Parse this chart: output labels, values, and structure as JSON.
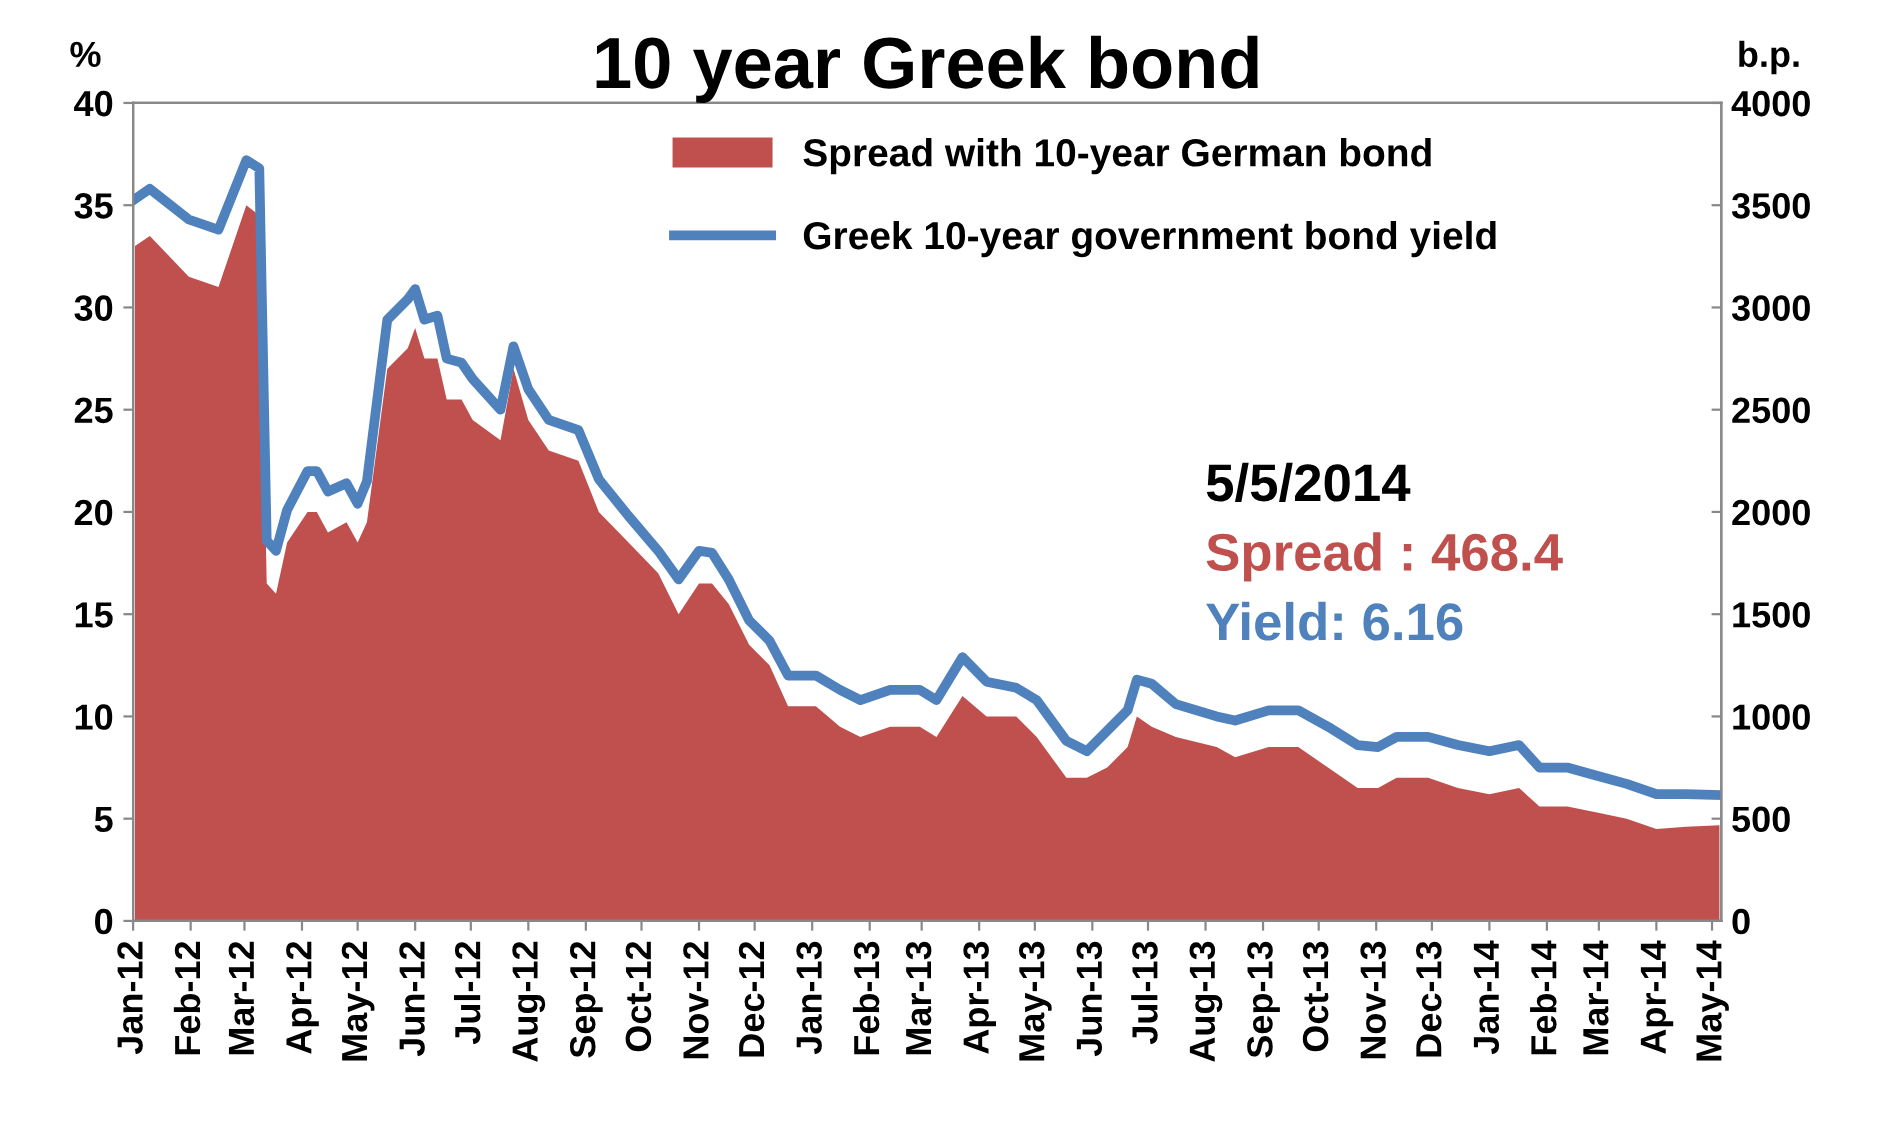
{
  "chart_data": {
    "type": "area",
    "title": "10 year Greek bond",
    "ylabel": "%",
    "y2label": "b.p.",
    "x": [
      "2012-01-02",
      "2012-01-10",
      "2012-01-31",
      "2012-02-16",
      "2012-03-02",
      "2012-03-09",
      "2012-03-13",
      "2012-03-18",
      "2012-03-24",
      "2012-04-04",
      "2012-04-09",
      "2012-04-15",
      "2012-04-25",
      "2012-05-01",
      "2012-05-06",
      "2012-05-17",
      "2012-05-28",
      "2012-06-01",
      "2012-06-06",
      "2012-06-13",
      "2012-06-18",
      "2012-06-26",
      "2012-07-02",
      "2012-07-17",
      "2012-07-24",
      "2012-08-01",
      "2012-08-12",
      "2012-08-28",
      "2012-09-08",
      "2012-09-24",
      "2012-10-10",
      "2012-10-21",
      "2012-11-01",
      "2012-11-08",
      "2012-11-17",
      "2012-11-28",
      "2012-12-09",
      "2012-12-19",
      "2013-01-03",
      "2013-01-16",
      "2013-01-27",
      "2013-02-12",
      "2013-02-28",
      "2013-03-09",
      "2013-03-23",
      "2013-04-05",
      "2013-04-21",
      "2013-05-02",
      "2013-05-18",
      "2013-05-29",
      "2013-06-09",
      "2013-06-20",
      "2013-06-25",
      "2013-07-03",
      "2013-07-16",
      "2013-08-07",
      "2013-08-17",
      "2013-09-04",
      "2013-09-20",
      "2013-10-06",
      "2013-10-22",
      "2013-11-02",
      "2013-11-12",
      "2013-11-29",
      "2013-12-15",
      "2014-01-01",
      "2014-01-17",
      "2014-01-28",
      "2014-02-12",
      "2014-02-28",
      "2014-03-16",
      "2014-04-01",
      "2014-04-17",
      "2014-05-05"
    ],
    "series": [
      {
        "name": "Spread with 10-year German bond",
        "axis": "y2",
        "color": "#c0504d",
        "values": [
          3300,
          3350,
          3150,
          3100,
          3500,
          3450,
          1650,
          1600,
          1850,
          2000,
          2000,
          1900,
          1950,
          1850,
          1950,
          2700,
          2800,
          2900,
          2750,
          2750,
          2550,
          2550,
          2450,
          2350,
          2700,
          2450,
          2300,
          2250,
          2000,
          1850,
          1700,
          1500,
          1650,
          1650,
          1550,
          1350,
          1250,
          1050,
          1050,
          950,
          900,
          950,
          950,
          900,
          1100,
          1000,
          1000,
          900,
          700,
          700,
          750,
          850,
          1000,
          950,
          900,
          850,
          800,
          850,
          850,
          750,
          650,
          650,
          700,
          700,
          650,
          620,
          650,
          560,
          560,
          530,
          500,
          450,
          460,
          468.4
        ]
      },
      {
        "name": "Greek 10-year government bond yield",
        "type": "line",
        "axis": "y",
        "color": "#4f81bd",
        "values": [
          35.3,
          35.8,
          34.3,
          33.8,
          37.2,
          36.8,
          18.6,
          18.1,
          20.1,
          22.0,
          22.0,
          21.0,
          21.4,
          20.4,
          21.5,
          29.4,
          30.4,
          30.9,
          29.4,
          29.6,
          27.5,
          27.3,
          26.5,
          25.0,
          28.1,
          26.0,
          24.5,
          24.0,
          21.6,
          19.8,
          18.1,
          16.7,
          18.1,
          18.0,
          16.7,
          14.7,
          13.7,
          12.0,
          12.0,
          11.3,
          10.8,
          11.3,
          11.3,
          10.8,
          12.9,
          11.7,
          11.4,
          10.8,
          8.8,
          8.3,
          9.3,
          10.3,
          11.8,
          11.6,
          10.6,
          10.0,
          9.8,
          10.3,
          10.3,
          9.5,
          8.6,
          8.5,
          9.0,
          9.0,
          8.6,
          8.3,
          8.6,
          7.5,
          7.5,
          7.1,
          6.7,
          6.2,
          6.2,
          6.16
        ]
      }
    ],
    "xlim": [
      "2012-01-01",
      "2014-05-06"
    ],
    "xticks": [
      {
        "value": "2012-01-01",
        "label": "Jan-12"
      },
      {
        "value": "2012-02-01",
        "label": "Feb-12"
      },
      {
        "value": "2012-03-01",
        "label": "Mar-12"
      },
      {
        "value": "2012-04-01",
        "label": "Apr-12"
      },
      {
        "value": "2012-05-01",
        "label": "May-12"
      },
      {
        "value": "2012-06-01",
        "label": "Jun-12"
      },
      {
        "value": "2012-07-01",
        "label": "Jul-12"
      },
      {
        "value": "2012-08-01",
        "label": "Aug-12"
      },
      {
        "value": "2012-09-01",
        "label": "Sep-12"
      },
      {
        "value": "2012-10-01",
        "label": "Oct-12"
      },
      {
        "value": "2012-11-01",
        "label": "Nov-12"
      },
      {
        "value": "2012-12-01",
        "label": "Dec-12"
      },
      {
        "value": "2013-01-01",
        "label": "Jan-13"
      },
      {
        "value": "2013-02-01",
        "label": "Feb-13"
      },
      {
        "value": "2013-03-01",
        "label": "Mar-13"
      },
      {
        "value": "2013-04-01",
        "label": "Apr-13"
      },
      {
        "value": "2013-05-01",
        "label": "May-13"
      },
      {
        "value": "2013-06-01",
        "label": "Jun-13"
      },
      {
        "value": "2013-07-01",
        "label": "Jul-13"
      },
      {
        "value": "2013-08-01",
        "label": "Aug-13"
      },
      {
        "value": "2013-09-01",
        "label": "Sep-13"
      },
      {
        "value": "2013-10-01",
        "label": "Oct-13"
      },
      {
        "value": "2013-11-01",
        "label": "Nov-13"
      },
      {
        "value": "2013-12-01",
        "label": "Dec-13"
      },
      {
        "value": "2014-01-01",
        "label": "Jan-14"
      },
      {
        "value": "2014-02-01",
        "label": "Feb-14"
      },
      {
        "value": "2014-03-01",
        "label": "Mar-14"
      },
      {
        "value": "2014-04-01",
        "label": "Apr-14"
      },
      {
        "value": "2014-05-01",
        "label": "May-14"
      }
    ],
    "ylim": [
      0,
      40
    ],
    "yticks": [
      0,
      5,
      10,
      15,
      20,
      25,
      30,
      35,
      40
    ],
    "y2lim": [
      0,
      4000
    ],
    "y2ticks": [
      0,
      500,
      1000,
      1500,
      2000,
      2500,
      3000,
      3500,
      4000
    ],
    "annotations": [
      "5/5/2014",
      "Spread : 468.4",
      "Yield: 6.16"
    ],
    "legend": "top",
    "grid": false
  }
}
